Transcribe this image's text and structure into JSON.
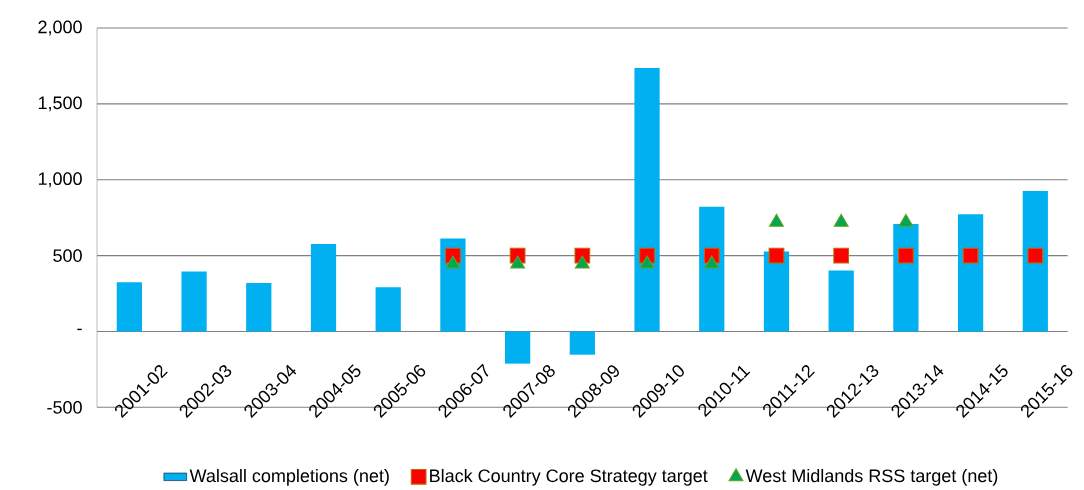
{
  "chart_data": {
    "type": "bar",
    "categories": [
      "2001-02",
      "2002-03",
      "2003-04",
      "2004-05",
      "2005-06",
      "2006-07",
      "2007-08",
      "2008-09",
      "2009-10",
      "2010-11",
      "2011-12",
      "2012-13",
      "2013-14",
      "2014-15",
      "2015-16"
    ],
    "series": [
      {
        "name": "Walsall completions (net)",
        "color": "#00b0f0",
        "values": [
          325,
          396,
          319,
          577,
          292,
          613,
          -212,
          -153,
          1736,
          822,
          527,
          402,
          708,
          772,
          925
        ]
      },
      {
        "name": "Black Country Core Strategy target",
        "type": "scatter",
        "marker": "square",
        "color": "#ff0000",
        "values": [
          null,
          null,
          null,
          null,
          null,
          500,
          500,
          500,
          500,
          500,
          500,
          500,
          500,
          500,
          500
        ]
      },
      {
        "name": "West Midlands RSS target (net)",
        "type": "scatter",
        "marker": "triangle",
        "color": "#00a650",
        "values": [
          null,
          null,
          null,
          null,
          null,
          445,
          445,
          445,
          445,
          445,
          720,
          720,
          720,
          null,
          null
        ]
      }
    ],
    "ylim": [
      -500,
      2000
    ],
    "yticks": [
      {
        "value": -500,
        "label": "-500"
      },
      {
        "value": 0,
        "label": "-"
      },
      500,
      {
        "value": 1000,
        "label": "1,000"
      },
      {
        "value": 1500,
        "label": "1,500"
      },
      {
        "value": 2000,
        "label": "2,000"
      }
    ],
    "grid": "y",
    "legend": "bottom"
  }
}
